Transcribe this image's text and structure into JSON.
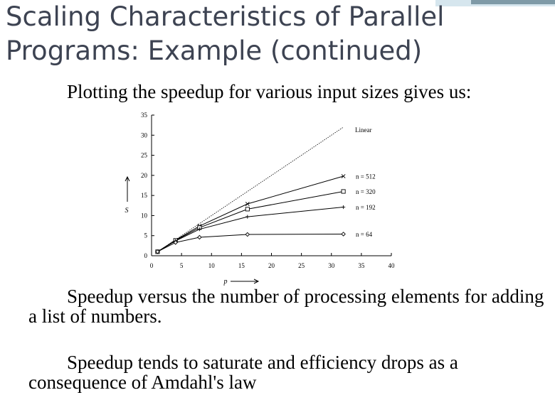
{
  "slide": {
    "title_line1": "Scaling Characteristics of Parallel",
    "title_line2": "Programs: Example (continued)",
    "intro": "Plotting the speedup for various input sizes gives us:",
    "caption": "Speedup versus the number of processing elements for adding a list of numbers.",
    "conclusion": "Speedup tends to saturate and efficiency drops as a consequence of Amdahl's law"
  },
  "colors": {
    "title": "#3d4352",
    "accent_light": "#d6e6ee",
    "accent_dark": "#7f9aa7"
  },
  "chart_data": {
    "type": "line",
    "xlabel": "p",
    "ylabel": "S",
    "xlim": [
      0,
      40
    ],
    "ylim": [
      0,
      35
    ],
    "x_ticks": [
      0,
      5,
      10,
      15,
      20,
      25,
      30,
      35,
      40
    ],
    "y_ticks": [
      0,
      5,
      10,
      15,
      20,
      25,
      30,
      35
    ],
    "x": [
      1,
      4,
      8,
      16,
      32
    ],
    "legend": "inline labels at line ends",
    "series": [
      {
        "name": "Linear",
        "marker": "none",
        "dashed": true,
        "points": [
          [
            1,
            1
          ],
          [
            32,
            32
          ]
        ]
      },
      {
        "name": "n = 512",
        "marker": "x",
        "values": [
          1,
          3.9,
          7.4,
          12.9,
          19.8
        ]
      },
      {
        "name": "n = 320",
        "marker": "square",
        "values": [
          1,
          3.8,
          7.0,
          11.6,
          16.0
        ]
      },
      {
        "name": "n = 192",
        "marker": "plus",
        "values": [
          1,
          3.7,
          6.6,
          9.7,
          12.1
        ]
      },
      {
        "name": "n = 64",
        "marker": "diamond",
        "values": [
          1,
          3.3,
          4.6,
          5.3,
          5.4
        ]
      }
    ]
  }
}
